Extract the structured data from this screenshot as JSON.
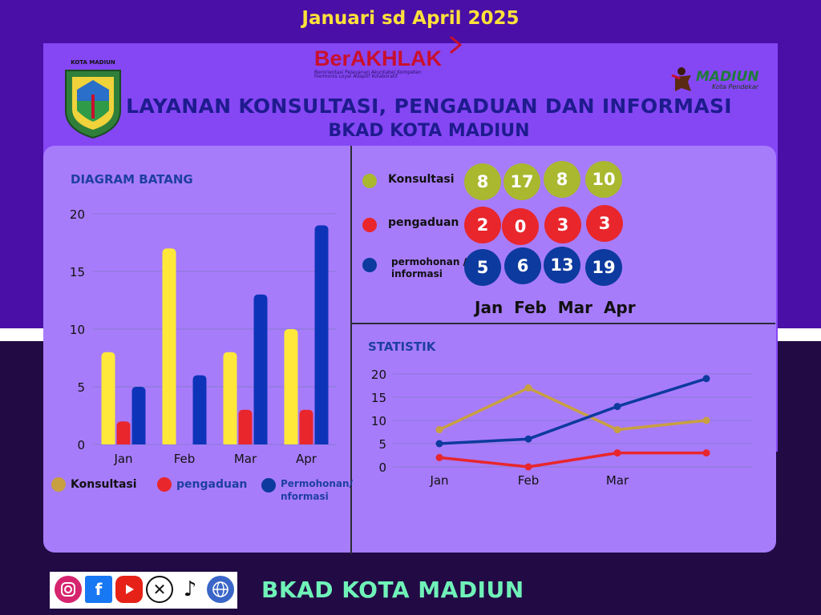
{
  "header": {
    "period": "Januari  sd April 2025",
    "title_line1": "LAYANAN KONSULTASI, PENGADUAN DAN INFORMASI",
    "title_line2": "BKAD KOTA MADIUN",
    "city_logo_caption": "KOTA MADIUN",
    "berakhlak": {
      "word": "BerAKHLAK",
      "tagline_line1": "Berorientasi Pelayanan Akuntabel Kompeten",
      "tagline_line2": "Harmonis Loyal Adaptif Kolaboratif"
    },
    "madiun_logo": {
      "word": "MADIUN",
      "sub": "Kota Pendekar"
    }
  },
  "colors": {
    "konsultasi_bar": "#ffe83a",
    "konsultasi_line": "#c8a040",
    "konsultasi_circle": "#a9b82f",
    "pengaduan": "#e8262c",
    "informasi": "#0d34b8",
    "informasi_circle": "#0d3a9e"
  },
  "chart_data": [
    {
      "type": "bar",
      "title": "DIAGRAM BATANG",
      "categories": [
        "Jan",
        "Feb",
        "Mar",
        "Apr"
      ],
      "series": [
        {
          "name": "Konsultasi",
          "values": [
            8,
            17,
            8,
            10
          ]
        },
        {
          "name": "pengaduan",
          "values": [
            2,
            0,
            3,
            3
          ]
        },
        {
          "name": "Permohonan/ nformasi",
          "values": [
            5,
            6,
            13,
            19
          ]
        }
      ],
      "yticks": [
        0,
        5,
        10,
        15,
        20
      ],
      "ylim": [
        0,
        20
      ],
      "grid": true,
      "legend": "bottom"
    },
    {
      "type": "line",
      "title": "STATISTIK",
      "categories": [
        "Jan",
        "Feb",
        "Mar",
        ""
      ],
      "series": [
        {
          "name": "Konsultasi",
          "values": [
            8,
            17,
            8,
            10
          ]
        },
        {
          "name": "pengaduan",
          "values": [
            2,
            0,
            3,
            3
          ]
        },
        {
          "name": "permohonan / informasi",
          "values": [
            5,
            6,
            13,
            19
          ]
        }
      ],
      "yticks": [
        0,
        5,
        10,
        15,
        20
      ],
      "ylim": [
        0,
        20
      ],
      "grid": true
    }
  ],
  "summary": {
    "rows": [
      {
        "label": "Konsultasi",
        "values": [
          "8",
          "17",
          "8",
          "10"
        ]
      },
      {
        "label": "pengaduan",
        "values": [
          "2",
          "0",
          "3",
          "3"
        ]
      },
      {
        "label_line1": "permohonan /",
        "label_line2": "informasi",
        "values": [
          "5",
          "6",
          "13",
          "19"
        ]
      }
    ],
    "months": "Jan  Feb  Mar  Apr"
  },
  "bar_legend": {
    "konsultasi": "Konsultasi",
    "pengaduan": "pengaduan",
    "informasi_line1": "Permohonan/",
    "informasi_line2": "nformasi"
  },
  "footer": {
    "name": "BKAD KOTA MADIUN",
    "social_icons": [
      "instagram-icon",
      "facebook-icon",
      "youtube-icon",
      "x-icon",
      "tiktok-icon",
      "web-icon"
    ]
  }
}
